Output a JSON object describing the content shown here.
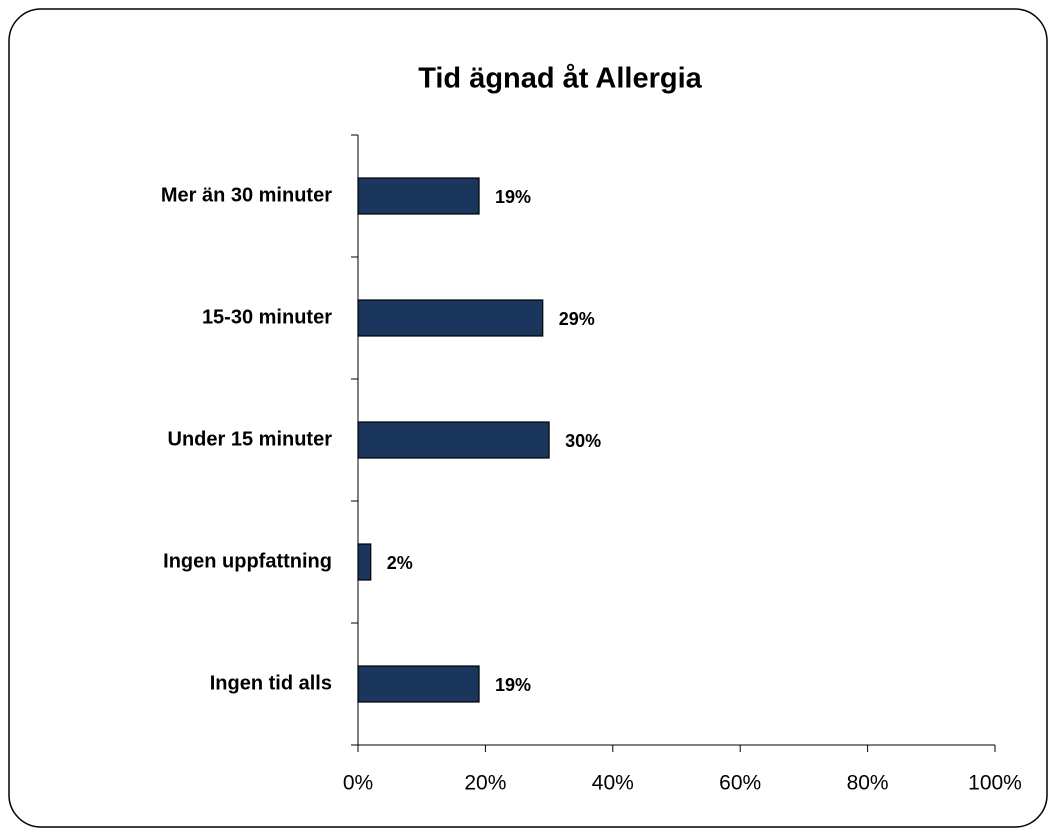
{
  "chart_data": {
    "type": "barh",
    "title": "Tid ägnad åt Allergia",
    "categories": [
      "Mer än 30 minuter",
      "15-30 minuter",
      "Under 15 minuter",
      "Ingen uppfattning",
      "Ingen tid alls"
    ],
    "values": [
      19,
      29,
      30,
      2,
      19
    ],
    "value_labels": [
      "19%",
      "29%",
      "30%",
      "2%",
      "19%"
    ],
    "color": "#1b365d",
    "xlim": [
      0,
      100
    ],
    "xticks": [
      {
        "value": 0,
        "label": "0%"
      },
      {
        "value": 20,
        "label": "20%"
      },
      {
        "value": 40,
        "label": "40%"
      },
      {
        "value": 60,
        "label": "60%"
      },
      {
        "value": 80,
        "label": "80%"
      },
      {
        "value": 100,
        "label": "100%"
      }
    ],
    "grid": false
  }
}
